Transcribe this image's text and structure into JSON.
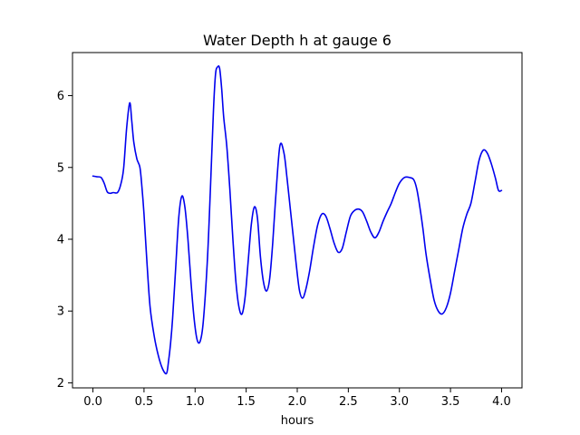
{
  "chart_data": {
    "type": "line",
    "title": "Water Depth h at gauge 6",
    "xlabel": "hours",
    "ylabel": "",
    "xlim": [
      -0.2,
      4.2
    ],
    "ylim": [
      1.93,
      6.6
    ],
    "xticks": [
      0.0,
      0.5,
      1.0,
      1.5,
      2.0,
      2.5,
      3.0,
      3.5,
      4.0
    ],
    "xtick_labels": [
      "0.0",
      "0.5",
      "1.0",
      "1.5",
      "2.0",
      "2.5",
      "3.0",
      "3.5",
      "4.0"
    ],
    "yticks": [
      2,
      3,
      4,
      5,
      6
    ],
    "ytick_labels": [
      "2",
      "3",
      "4",
      "5",
      "6"
    ],
    "grid": false,
    "legend": "none",
    "series": [
      {
        "color": "#0000ee",
        "x": [
          0.0,
          0.04,
          0.08,
          0.11,
          0.14,
          0.17,
          0.2,
          0.24,
          0.27,
          0.3,
          0.33,
          0.36,
          0.38,
          0.4,
          0.43,
          0.46,
          0.48,
          0.5,
          0.53,
          0.56,
          0.6,
          0.64,
          0.68,
          0.72,
          0.74,
          0.76,
          0.78,
          0.81,
          0.84,
          0.87,
          0.9,
          0.93,
          0.96,
          0.99,
          1.02,
          1.05,
          1.08,
          1.12,
          1.15,
          1.18,
          1.2,
          1.22,
          1.24,
          1.26,
          1.28,
          1.31,
          1.34,
          1.37,
          1.4,
          1.43,
          1.46,
          1.49,
          1.52,
          1.55,
          1.58,
          1.61,
          1.64,
          1.67,
          1.7,
          1.73,
          1.76,
          1.79,
          1.83,
          1.87,
          1.9,
          1.93,
          1.96,
          1.99,
          2.02,
          2.05,
          2.08,
          2.12,
          2.16,
          2.2,
          2.24,
          2.28,
          2.32,
          2.36,
          2.4,
          2.44,
          2.48,
          2.52,
          2.56,
          2.6,
          2.64,
          2.68,
          2.72,
          2.76,
          2.8,
          2.84,
          2.88,
          2.92,
          2.96,
          3.0,
          3.05,
          3.1,
          3.14,
          3.17,
          3.2,
          3.23,
          3.26,
          3.3,
          3.34,
          3.38,
          3.42,
          3.46,
          3.5,
          3.54,
          3.58,
          3.62,
          3.66,
          3.7,
          3.74,
          3.78,
          3.82,
          3.86,
          3.9,
          3.94,
          3.97,
          4.0
        ],
        "y": [
          4.88,
          4.87,
          4.86,
          4.78,
          4.66,
          4.64,
          4.65,
          4.65,
          4.75,
          4.98,
          5.55,
          5.9,
          5.65,
          5.35,
          5.12,
          5.0,
          4.72,
          4.35,
          3.65,
          3.05,
          2.65,
          2.38,
          2.2,
          2.13,
          2.3,
          2.55,
          2.9,
          3.6,
          4.3,
          4.6,
          4.45,
          4.0,
          3.4,
          2.9,
          2.6,
          2.58,
          2.85,
          3.7,
          4.7,
          5.8,
          6.3,
          6.4,
          6.38,
          6.1,
          5.7,
          5.3,
          4.7,
          4.0,
          3.4,
          3.05,
          2.96,
          3.2,
          3.7,
          4.2,
          4.45,
          4.3,
          3.75,
          3.4,
          3.28,
          3.45,
          3.95,
          4.6,
          5.3,
          5.2,
          4.85,
          4.45,
          4.05,
          3.65,
          3.3,
          3.18,
          3.28,
          3.55,
          3.9,
          4.2,
          4.35,
          4.32,
          4.15,
          3.95,
          3.82,
          3.87,
          4.1,
          4.32,
          4.4,
          4.42,
          4.38,
          4.25,
          4.1,
          4.02,
          4.1,
          4.25,
          4.38,
          4.5,
          4.65,
          4.78,
          4.86,
          4.86,
          4.83,
          4.7,
          4.45,
          4.15,
          3.8,
          3.45,
          3.15,
          3.0,
          2.96,
          3.05,
          3.25,
          3.55,
          3.85,
          4.15,
          4.35,
          4.5,
          4.8,
          5.1,
          5.24,
          5.2,
          5.05,
          4.85,
          4.68,
          4.68
        ]
      }
    ]
  }
}
